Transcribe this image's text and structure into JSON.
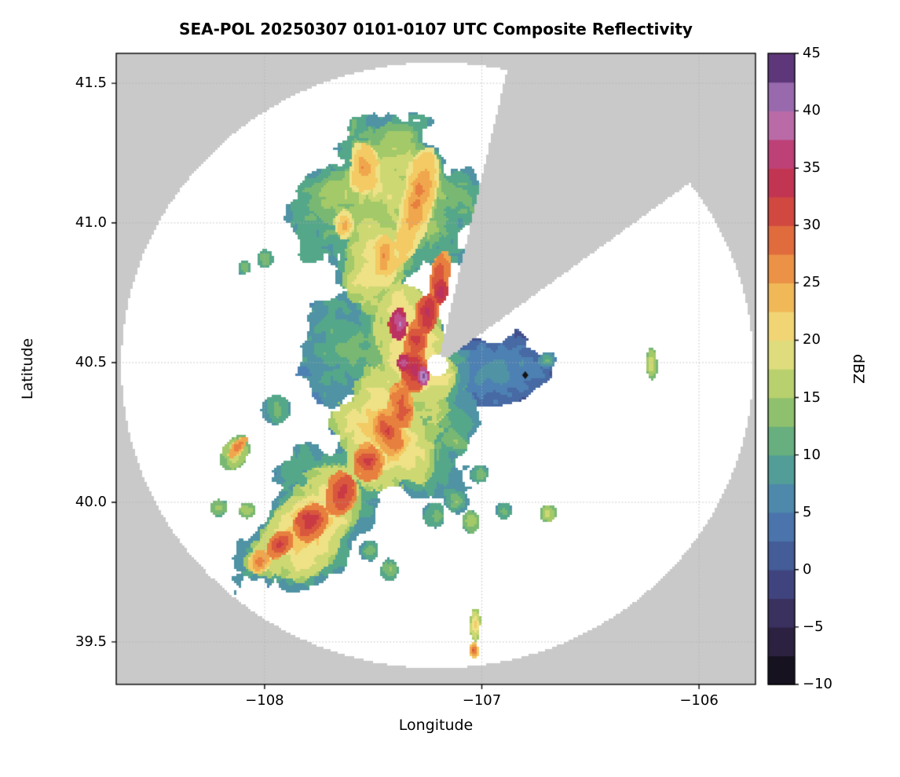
{
  "title": "SEA-POL 20250307 0101-0107 UTC Composite Reflectivity",
  "axes": {
    "xlabel": "Longitude",
    "ylabel": "Latitude",
    "x_range": [
      -108.683,
      -105.74
    ],
    "y_range": [
      39.348,
      41.607
    ],
    "x_ticks": [
      {
        "v": -108,
        "label": "−108"
      },
      {
        "v": -107,
        "label": "−107"
      },
      {
        "v": -106,
        "label": "−106"
      }
    ],
    "y_ticks": [
      {
        "v": 39.5,
        "label": "39.5"
      },
      {
        "v": 40.0,
        "label": "40.0"
      },
      {
        "v": 40.5,
        "label": "40.5"
      },
      {
        "v": 41.0,
        "label": "41.0"
      },
      {
        "v": 41.5,
        "label": "41.5"
      }
    ],
    "grid_color": "#b0b0b0"
  },
  "colorbar": {
    "label": "dBZ",
    "min": -10,
    "max": 45,
    "step": 2.5,
    "ticks": [
      {
        "v": -10,
        "label": "−10"
      },
      {
        "v": -5,
        "label": "−5"
      },
      {
        "v": 0,
        "label": "0"
      },
      {
        "v": 5,
        "label": "5"
      },
      {
        "v": 10,
        "label": "10"
      },
      {
        "v": 15,
        "label": "15"
      },
      {
        "v": 20,
        "label": "20"
      },
      {
        "v": 25,
        "label": "25"
      },
      {
        "v": 30,
        "label": "30"
      },
      {
        "v": 35,
        "label": "35"
      },
      {
        "v": 40,
        "label": "40"
      },
      {
        "v": 45,
        "label": "45"
      }
    ],
    "stops": [
      [
        -10.0,
        "#0b0b0b"
      ],
      [
        -7.5,
        "#231a33"
      ],
      [
        -5.0,
        "#35284e"
      ],
      [
        -2.5,
        "#3f3a70"
      ],
      [
        0.0,
        "#424f8c"
      ],
      [
        2.5,
        "#4769a4"
      ],
      [
        5.0,
        "#4d80b3"
      ],
      [
        7.5,
        "#4f93a4"
      ],
      [
        10.0,
        "#55a78a"
      ],
      [
        12.5,
        "#79b873"
      ],
      [
        15.0,
        "#a3c968"
      ],
      [
        17.5,
        "#cdd873"
      ],
      [
        20.0,
        "#efe186"
      ],
      [
        22.5,
        "#f3ca63"
      ],
      [
        25.0,
        "#f0a64d"
      ],
      [
        27.5,
        "#e77f3f"
      ],
      [
        30.0,
        "#d9573c"
      ],
      [
        32.5,
        "#c93a45"
      ],
      [
        35.0,
        "#bb3160"
      ],
      [
        37.5,
        "#bf4f8d"
      ],
      [
        40.0,
        "#b685c1"
      ],
      [
        42.5,
        "#7b4f9a"
      ],
      [
        45.0,
        "#41205a"
      ]
    ]
  },
  "chart_data": {
    "type": "heatmap",
    "value_units": "dBZ",
    "value_range": [
      -10,
      45
    ],
    "radar": {
      "name": "SEA-POL",
      "center_lon": -107.205,
      "center_lat": 40.49,
      "coverage_radius_lon_deg": 1.454,
      "coverage_radius_lat_deg": 1.084,
      "missing_sector_azimuth_deg": [
        13.3,
        54.1
      ],
      "no_coverage_color": "#c9c9c9",
      "in_coverage_color": "#ffffff"
    },
    "echo_fields": [
      "lon",
      "lat",
      "rx_deg",
      "ry_deg",
      "rot_deg",
      "core_dbz",
      "edge_dbz"
    ],
    "echoes": [
      [
        -107.35,
        40.45,
        0.3,
        0.42,
        20,
        14,
        8
      ],
      [
        -107.75,
        39.95,
        0.38,
        0.22,
        35,
        14,
        8
      ],
      [
        -107.45,
        41.05,
        0.4,
        0.3,
        0,
        15,
        9
      ],
      [
        -107.6,
        40.55,
        0.22,
        0.2,
        0,
        12,
        7
      ],
      [
        -106.95,
        40.47,
        0.26,
        0.13,
        0,
        9,
        2
      ],
      [
        -107.3,
        40.15,
        0.18,
        0.14,
        0,
        13,
        8
      ],
      [
        -107.12,
        40.22,
        0.08,
        0.05,
        -20,
        15,
        9
      ],
      [
        -107.42,
        41.1,
        0.3,
        0.22,
        0,
        19,
        13
      ],
      [
        -107.3,
        40.55,
        0.17,
        0.28,
        10,
        24,
        16
      ],
      [
        -107.45,
        40.25,
        0.2,
        0.25,
        15,
        24,
        16
      ],
      [
        -107.8,
        39.92,
        0.28,
        0.16,
        35,
        24,
        16
      ],
      [
        -107.5,
        40.9,
        0.15,
        0.2,
        0,
        22,
        15
      ],
      [
        -107.3,
        41.07,
        0.08,
        0.22,
        -20,
        28,
        20
      ],
      [
        -107.55,
        41.2,
        0.07,
        0.09,
        0,
        27,
        20
      ],
      [
        -107.63,
        40.99,
        0.05,
        0.06,
        0,
        26,
        19
      ],
      [
        -107.45,
        40.88,
        0.06,
        0.1,
        10,
        27,
        20
      ],
      [
        -107.2,
        40.8,
        0.05,
        0.1,
        -15,
        33,
        26
      ],
      [
        -107.25,
        40.68,
        0.06,
        0.09,
        -10,
        37,
        29
      ],
      [
        -107.3,
        40.58,
        0.06,
        0.08,
        0,
        34,
        27
      ],
      [
        -107.31,
        40.47,
        0.07,
        0.09,
        0,
        36,
        28
      ],
      [
        -107.37,
        40.35,
        0.06,
        0.09,
        10,
        32,
        26
      ],
      [
        -107.43,
        40.25,
        0.06,
        0.08,
        15,
        31,
        25
      ],
      [
        -107.52,
        40.14,
        0.07,
        0.07,
        30,
        32,
        26
      ],
      [
        -107.65,
        40.03,
        0.08,
        0.07,
        35,
        34,
        27
      ],
      [
        -107.79,
        39.93,
        0.08,
        0.06,
        35,
        33,
        27
      ],
      [
        -107.93,
        39.85,
        0.07,
        0.05,
        30,
        32,
        26
      ],
      [
        -108.02,
        39.79,
        0.05,
        0.04,
        30,
        28,
        22
      ],
      [
        -107.38,
        40.63,
        0.045,
        0.055,
        0,
        41,
        34
      ],
      [
        -107.19,
        40.75,
        0.035,
        0.05,
        0,
        38,
        32
      ],
      [
        -107.27,
        40.45,
        0.03,
        0.04,
        0,
        43,
        36
      ],
      [
        -107.36,
        40.5,
        0.03,
        0.03,
        0,
        40,
        34
      ],
      [
        -107.57,
        40.67,
        0.06,
        0.05,
        0,
        9,
        4
      ],
      [
        -107.62,
        40.47,
        0.05,
        0.05,
        0,
        2,
        -4
      ],
      [
        -107.5,
        40.57,
        0.06,
        0.05,
        0,
        10,
        5
      ],
      [
        -107.05,
        40.5,
        0.05,
        0.04,
        0,
        3,
        -2
      ],
      [
        -107.09,
        40.47,
        0.025,
        0.025,
        0,
        -5,
        -8
      ],
      [
        -106.93,
        40.44,
        0.08,
        0.05,
        0,
        6,
        1
      ],
      [
        -106.82,
        40.49,
        0.05,
        0.04,
        0,
        8,
        3
      ],
      [
        -106.7,
        40.51,
        0.04,
        0.03,
        0,
        11,
        6
      ],
      [
        -107.0,
        40.55,
        0.05,
        0.035,
        0,
        7,
        2
      ],
      [
        -107.15,
        40.505,
        0.018,
        0.018,
        0,
        -6,
        -9
      ],
      [
        -108.13,
        40.18,
        0.07,
        0.05,
        40,
        19,
        13
      ],
      [
        -108.12,
        40.2,
        0.05,
        0.02,
        40,
        29,
        24
      ],
      [
        -108.21,
        39.98,
        0.045,
        0.035,
        0,
        17,
        12
      ],
      [
        -108.08,
        39.97,
        0.05,
        0.035,
        0,
        17,
        12
      ],
      [
        -107.94,
        40.33,
        0.06,
        0.05,
        0,
        13,
        8
      ],
      [
        -108.0,
        40.87,
        0.045,
        0.04,
        0,
        15,
        10
      ],
      [
        -108.09,
        40.84,
        0.03,
        0.025,
        0,
        14,
        10
      ],
      [
        -107.52,
        39.83,
        0.05,
        0.04,
        0,
        13,
        8
      ],
      [
        -107.42,
        39.76,
        0.045,
        0.04,
        0,
        16,
        10
      ],
      [
        -107.22,
        39.95,
        0.06,
        0.05,
        0,
        14,
        9
      ],
      [
        -107.12,
        40.0,
        0.05,
        0.04,
        0,
        13,
        8
      ],
      [
        -107.05,
        39.93,
        0.04,
        0.035,
        0,
        17,
        12
      ],
      [
        -106.9,
        39.97,
        0.05,
        0.04,
        0,
        13,
        8
      ],
      [
        -106.7,
        39.96,
        0.04,
        0.035,
        0,
        20,
        13
      ],
      [
        -107.03,
        39.56,
        0.022,
        0.05,
        0,
        23,
        16
      ],
      [
        -107.035,
        39.47,
        0.018,
        0.025,
        0,
        30,
        22
      ],
      [
        -107.01,
        40.1,
        0.04,
        0.03,
        0,
        12,
        8
      ],
      [
        -106.22,
        40.5,
        0.025,
        0.055,
        0,
        19,
        13
      ]
    ],
    "markers": [
      {
        "lon": -106.8,
        "lat": 40.455,
        "shape": "diamond",
        "color": "#141414"
      }
    ]
  }
}
